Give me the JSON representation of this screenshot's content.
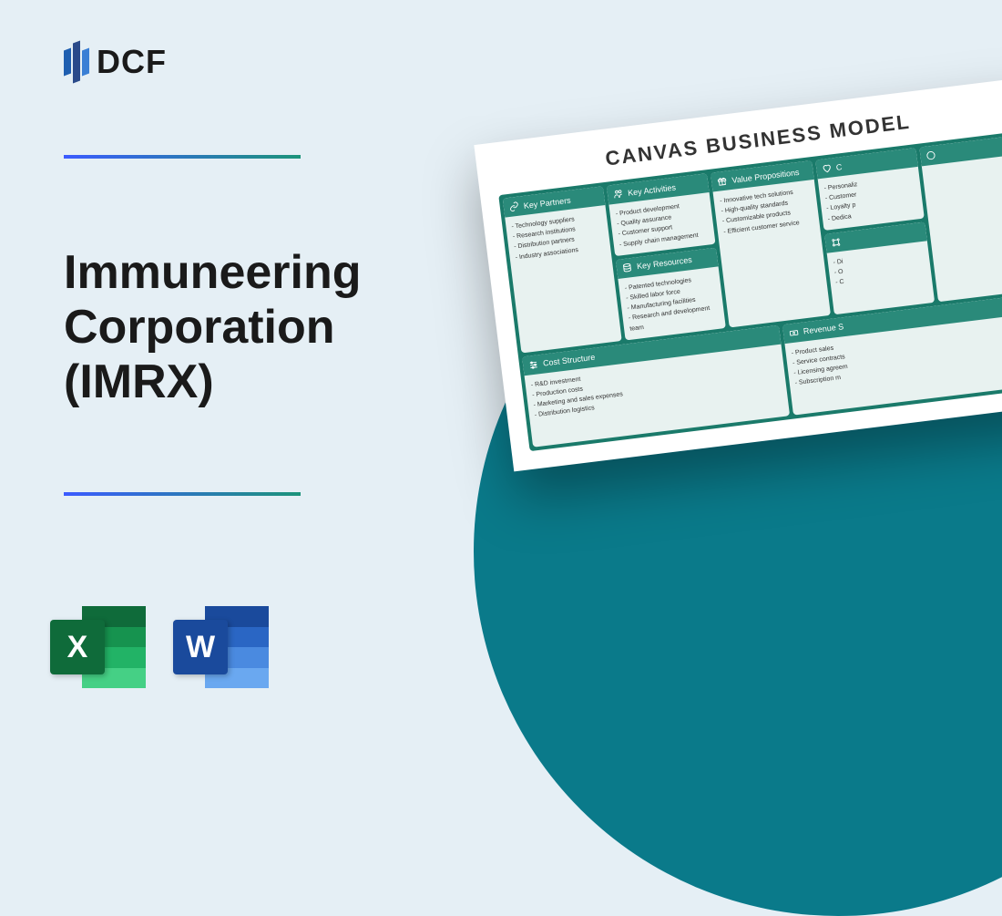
{
  "logo": {
    "text": "DCF"
  },
  "title": "Immuneering\nCorporation\n(IMRX)",
  "icons": {
    "excel_letter": "X",
    "word_letter": "W"
  },
  "canvas": {
    "title": "CANVAS BUSINESS MODEL",
    "key_partners": {
      "label": "Key Partners",
      "items": [
        "Technology suppliers",
        "Research institutions",
        "Distribution partners",
        "Industry associations"
      ]
    },
    "key_activities": {
      "label": "Key Activities",
      "items": [
        "Product development",
        "Quality assurance",
        "Customer support",
        "Supply chain management"
      ]
    },
    "key_resources": {
      "label": "Key Resources",
      "items": [
        "Patented technologies",
        "Skilled labor force",
        "Manufacturing facilities",
        "Research and development team"
      ]
    },
    "value_propositions": {
      "label": "Value Propositions",
      "items": [
        "Innovative tech solutions",
        "High-quality standards",
        "Customizable products",
        "Efficient customer service"
      ]
    },
    "customer_relationships": {
      "label": "C",
      "items": [
        "Personaliz",
        "Customer",
        "Loyalty p",
        "Dedica"
      ]
    },
    "channels": {
      "label": "",
      "items": [
        "Di",
        "O",
        "C",
        ""
      ]
    },
    "cost_structure": {
      "label": "Cost Structure",
      "items": [
        "R&D investment",
        "Production costs",
        "Marketing and sales expenses",
        "Distribution logistics"
      ]
    },
    "revenue_streams": {
      "label": "Revenue S",
      "items": [
        "Product sales",
        "Service contracts",
        "Licensing agreem",
        "Subscription m"
      ]
    }
  },
  "colors": {
    "page_bg": "#e5eff5",
    "circle": "#0a7a8a",
    "canvas_bg": "#1a7a6a",
    "cell_head": "#2a8a7a",
    "cell_body": "#e8f2f0",
    "divider_start": "#3b5bff",
    "divider_end": "#1c947a"
  }
}
